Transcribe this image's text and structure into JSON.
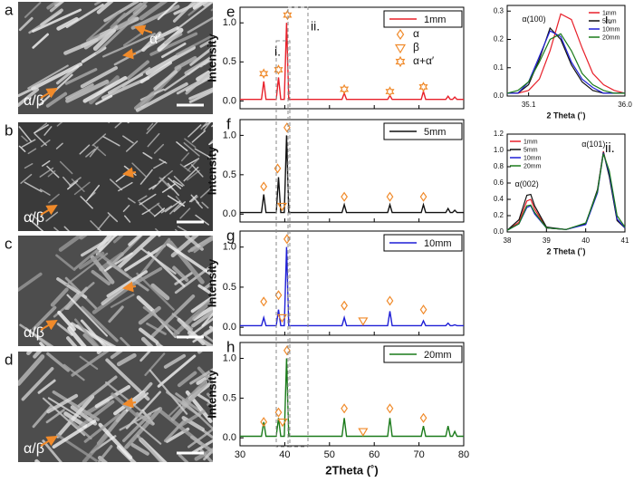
{
  "micrographs": [
    {
      "label": "a",
      "phase": "α/β",
      "callout": "α′"
    },
    {
      "label": "b",
      "phase": "α/β"
    },
    {
      "label": "c",
      "phase": "α/β"
    },
    {
      "label": "d",
      "phase": "α/β"
    }
  ],
  "chart_data": [
    {
      "type": "line",
      "panel": "e",
      "ylabel": "Intensity",
      "xlim": [
        30,
        80
      ],
      "ylim": [
        -0.1,
        1.2
      ],
      "xticks": [
        30,
        40,
        50,
        60,
        70,
        80
      ],
      "xtick_labels": false,
      "yticks": [
        {
          "value": 0,
          "label": "0.0"
        },
        {
          "value": 0.5,
          "label": "0.5"
        },
        {
          "value": 1,
          "label": "1.0"
        }
      ],
      "region_labels": [
        "i.",
        "ii."
      ],
      "phases": [
        "α",
        "β",
        "α+α′"
      ],
      "x": [
        30,
        34.8,
        35.3,
        35.8,
        38.1,
        38.6,
        39.1,
        39.9,
        40.4,
        40.9,
        52.8,
        53.3,
        53.8,
        63,
        63.5,
        64,
        70.5,
        71,
        71.5,
        76,
        76.5,
        77,
        77.5,
        78,
        78.5,
        80
      ],
      "series": [
        {
          "name": "1mm",
          "color": "#e8202a",
          "values": [
            0.02,
            0.02,
            0.25,
            0.02,
            0.02,
            0.3,
            0.02,
            0.02,
            1.0,
            0.02,
            0.02,
            0.1,
            0.02,
            0.02,
            0.07,
            0.02,
            0.02,
            0.12,
            0.02,
            0.02,
            0.06,
            0.02,
            0.02,
            0.05,
            0.02,
            0.02
          ]
        }
      ],
      "markers": {
        "x": [
          35.3,
          38.6,
          40.6,
          53.3,
          63.5,
          71
        ],
        "y": [
          0.35,
          0.4,
          1.1,
          0.15,
          0.12,
          0.18
        ],
        "phase": [
          2,
          2,
          2,
          2,
          2,
          2
        ]
      }
    },
    {
      "type": "line",
      "panel": "f",
      "ylabel": "Intensity",
      "xlim": [
        30,
        80
      ],
      "ylim": [
        -0.1,
        1.2
      ],
      "xticks": [
        30,
        40,
        50,
        60,
        70,
        80
      ],
      "xtick_labels": false,
      "yticks": [
        {
          "value": 0,
          "label": "0.0"
        },
        {
          "value": 0.5,
          "label": "0.5"
        },
        {
          "value": 1,
          "label": "1.0"
        }
      ],
      "x": [
        30,
        34.8,
        35.3,
        35.8,
        38.1,
        38.6,
        39.1,
        39.9,
        40.4,
        40.9,
        52.8,
        53.3,
        53.8,
        63,
        63.5,
        64,
        70.5,
        71,
        71.5,
        76,
        76.5,
        77,
        77.5,
        78,
        78.5,
        80
      ],
      "series": [
        {
          "name": "5mm",
          "color": "#111111",
          "values": [
            0.02,
            0.02,
            0.25,
            0.02,
            0.02,
            0.47,
            0.02,
            0.02,
            1.0,
            0.02,
            0.02,
            0.12,
            0.02,
            0.02,
            0.12,
            0.02,
            0.02,
            0.12,
            0.02,
            0.02,
            0.07,
            0.02,
            0.02,
            0.05,
            0.02,
            0.02
          ]
        }
      ],
      "markers": {
        "x": [
          35.3,
          38.4,
          40.5,
          53.3,
          63.5,
          71,
          39.4
        ],
        "y": [
          0.35,
          0.58,
          1.1,
          0.22,
          0.22,
          0.22,
          0.1
        ],
        "phase": [
          0,
          0,
          0,
          0,
          0,
          0,
          1
        ]
      }
    },
    {
      "type": "line",
      "panel": "g",
      "ylabel": "Intensity",
      "xlim": [
        30,
        80
      ],
      "ylim": [
        -0.1,
        1.2
      ],
      "xticks": [
        30,
        40,
        50,
        60,
        70,
        80
      ],
      "xtick_labels": false,
      "yticks": [
        {
          "value": 0,
          "label": "0.0"
        },
        {
          "value": 0.5,
          "label": "0.5"
        },
        {
          "value": 1,
          "label": "1.0"
        }
      ],
      "x": [
        30,
        34.8,
        35.3,
        35.8,
        38.1,
        38.6,
        39.1,
        39.9,
        40.4,
        40.9,
        52.8,
        53.3,
        53.8,
        63,
        63.5,
        64,
        70.5,
        71,
        71.5,
        76,
        76.5,
        77,
        77.5,
        78,
        78.5,
        80
      ],
      "series": [
        {
          "name": "10mm",
          "color": "#1f1fd6",
          "values": [
            0.02,
            0.02,
            0.12,
            0.02,
            0.02,
            0.22,
            0.02,
            0.02,
            1.0,
            0.02,
            0.02,
            0.12,
            0.02,
            0.02,
            0.2,
            0.02,
            0.02,
            0.08,
            0.02,
            0.02,
            0.05,
            0.02,
            0.02,
            0.03,
            0.02,
            0.02
          ]
        }
      ],
      "markers": {
        "x": [
          35.3,
          38.6,
          40.5,
          53.3,
          63.5,
          71,
          39.4,
          57.5
        ],
        "y": [
          0.32,
          0.4,
          1.1,
          0.27,
          0.33,
          0.22,
          0.12,
          0.08
        ],
        "phase": [
          0,
          0,
          0,
          0,
          0,
          0,
          1,
          1
        ]
      }
    },
    {
      "type": "line",
      "panel": "h",
      "ylabel": "Intensity",
      "xlabel": "2Theta (˚)",
      "xlim": [
        30,
        80
      ],
      "ylim": [
        -0.1,
        1.2
      ],
      "xticks": [
        30,
        40,
        50,
        60,
        70,
        80
      ],
      "xtick_labels": true,
      "yticks": [
        {
          "value": 0,
          "label": "0.0"
        },
        {
          "value": 0.5,
          "label": "0.5"
        },
        {
          "value": 1,
          "label": "1.0"
        }
      ],
      "x": [
        30,
        34.8,
        35.3,
        35.8,
        38.1,
        38.6,
        39.1,
        39.9,
        40.4,
        40.9,
        52.8,
        53.3,
        53.8,
        63,
        63.5,
        64,
        70.5,
        71,
        71.5,
        76,
        76.5,
        77,
        77.5,
        78,
        78.5,
        80
      ],
      "series": [
        {
          "name": "20mm",
          "color": "#1a7a1a",
          "values": [
            0.02,
            0.02,
            0.2,
            0.02,
            0.02,
            0.25,
            0.02,
            0.02,
            1.0,
            0.02,
            0.02,
            0.25,
            0.02,
            0.02,
            0.25,
            0.02,
            0.02,
            0.15,
            0.02,
            0.02,
            0.15,
            0.02,
            0.02,
            0.08,
            0.02,
            0.02
          ]
        }
      ],
      "markers": {
        "x": [
          35.3,
          38.6,
          40.5,
          53.3,
          63.5,
          71,
          39.5,
          57.5
        ],
        "y": [
          0.2,
          0.32,
          1.1,
          0.37,
          0.37,
          0.25,
          0.2,
          0.08
        ],
        "phase": [
          0,
          0,
          0,
          0,
          0,
          0,
          1,
          1
        ]
      }
    },
    {
      "type": "line",
      "panel": "i.",
      "xlabel": "2 Theta (˚)",
      "xlim": [
        34.9,
        36.0
      ],
      "ylim": [
        0,
        0.32
      ],
      "xticks": [
        35.1,
        {
          "value": 36,
          "label": "36.0"
        }
      ],
      "xtick_labels": true,
      "yticks": [
        {
          "value": 0,
          "label": "0.0"
        },
        0.1,
        0.2,
        0.3
      ],
      "annotations": [
        {
          "text": "α(100)",
          "x": 35.15,
          "y": 0.27
        }
      ],
      "x": [
        34.9,
        35.0,
        35.1,
        35.2,
        35.3,
        35.4,
        35.5,
        35.6,
        35.7,
        35.8,
        35.9,
        36.0
      ],
      "series": [
        {
          "name": "1mm",
          "color": "#e8202a",
          "values": [
            0.01,
            0.01,
            0.02,
            0.06,
            0.16,
            0.29,
            0.27,
            0.17,
            0.08,
            0.04,
            0.02,
            0.01
          ]
        },
        {
          "name": "5mm",
          "color": "#111111",
          "values": [
            0.01,
            0.01,
            0.04,
            0.13,
            0.24,
            0.2,
            0.11,
            0.05,
            0.02,
            0.01,
            0.01,
            0.01
          ]
        },
        {
          "name": "10mm",
          "color": "#1f1fd6",
          "values": [
            0.01,
            0.01,
            0.05,
            0.14,
            0.23,
            0.21,
            0.12,
            0.06,
            0.03,
            0.01,
            0.01,
            0.01
          ]
        },
        {
          "name": "20mm",
          "color": "#1a7a1a",
          "values": [
            0.01,
            0.02,
            0.05,
            0.12,
            0.2,
            0.22,
            0.16,
            0.08,
            0.04,
            0.02,
            0.01,
            0.01
          ]
        }
      ]
    },
    {
      "type": "line",
      "panel": "ii.",
      "xlabel": "2 Theta (˚)",
      "xlim": [
        38,
        41
      ],
      "ylim": [
        0,
        1.2
      ],
      "xticks": [
        38,
        39,
        40,
        41
      ],
      "xtick_labels": true,
      "yticks": [
        {
          "value": 0,
          "label": "0.0"
        },
        0.2,
        0.4,
        0.6,
        0.8,
        {
          "value": 1,
          "label": "1.0"
        },
        1.2
      ],
      "annotations": [
        {
          "text": "α(002)",
          "x": 38.5,
          "y": 0.58
        },
        {
          "text": "α(101)",
          "x": 40.2,
          "y": 1.07
        }
      ],
      "x": [
        38,
        38.3,
        38.5,
        38.6,
        38.7,
        39,
        39.5,
        40,
        40.3,
        40.45,
        40.6,
        40.8,
        41
      ],
      "series": [
        {
          "name": "1mm",
          "color": "#e8202a",
          "values": [
            0.02,
            0.12,
            0.38,
            0.4,
            0.28,
            0.05,
            0.03,
            0.1,
            0.5,
            0.99,
            0.7,
            0.15,
            0.05
          ]
        },
        {
          "name": "5mm",
          "color": "#111111",
          "values": [
            0.02,
            0.15,
            0.45,
            0.46,
            0.32,
            0.06,
            0.03,
            0.1,
            0.52,
            0.98,
            0.68,
            0.14,
            0.05
          ]
        },
        {
          "name": "10mm",
          "color": "#1f1fd6",
          "values": [
            0.02,
            0.1,
            0.3,
            0.32,
            0.22,
            0.05,
            0.03,
            0.09,
            0.48,
            0.97,
            0.72,
            0.16,
            0.05
          ]
        },
        {
          "name": "20mm",
          "color": "#1a7a1a",
          "values": [
            0.02,
            0.1,
            0.32,
            0.33,
            0.24,
            0.05,
            0.03,
            0.11,
            0.5,
            0.96,
            0.75,
            0.2,
            0.06
          ]
        }
      ]
    }
  ]
}
